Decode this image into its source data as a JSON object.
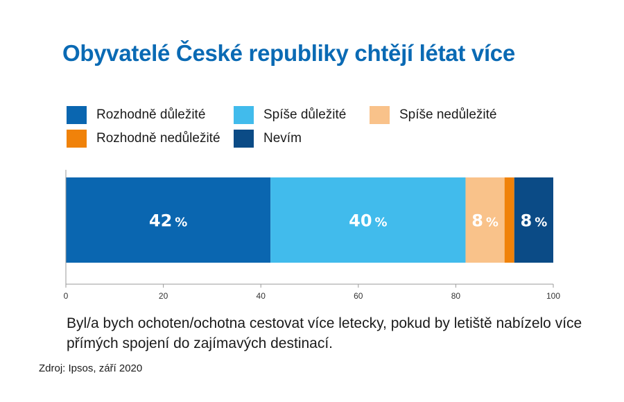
{
  "title": "Obyvatelé České republiky chtějí létat více",
  "caption": "Byl/a bych ochoten/ochotna cestovat více letecky, pokud by letiště nabízelo více přímých spojení do zajímavých destinací.",
  "source": "Zdroj: Ipsos, září 2020",
  "chart_data": {
    "type": "bar",
    "orientation": "horizontal",
    "stacked": true,
    "title": "Obyvatelé České republiky chtějí létat více",
    "categories": [
      ""
    ],
    "xlim": [
      0,
      100
    ],
    "xticks": [
      "0",
      "20",
      "40",
      "60",
      "80",
      "100"
    ],
    "grid": false,
    "legend_position": "top-left",
    "series": [
      {
        "name": "Rozhodně důležité",
        "value": 42,
        "color": "#0a66b0",
        "label": "42",
        "label_color": "#ffffff"
      },
      {
        "name": "Spíše důležité",
        "value": 40,
        "color": "#41bbec",
        "label": "40",
        "label_color": "#ffffff"
      },
      {
        "name": "Spíše nedůležité",
        "value": 8,
        "color": "#f9c28a",
        "label": "8",
        "label_color": "#ffffff"
      },
      {
        "name": "Rozhodně nedůležité",
        "value": 2,
        "color": "#f0820a",
        "label": "",
        "label_color": "#ffffff"
      },
      {
        "name": "Nevím",
        "value": 8,
        "color": "#0b4b86",
        "label": "8",
        "label_color": "#ffffff"
      }
    ],
    "percent_sign": "%"
  }
}
